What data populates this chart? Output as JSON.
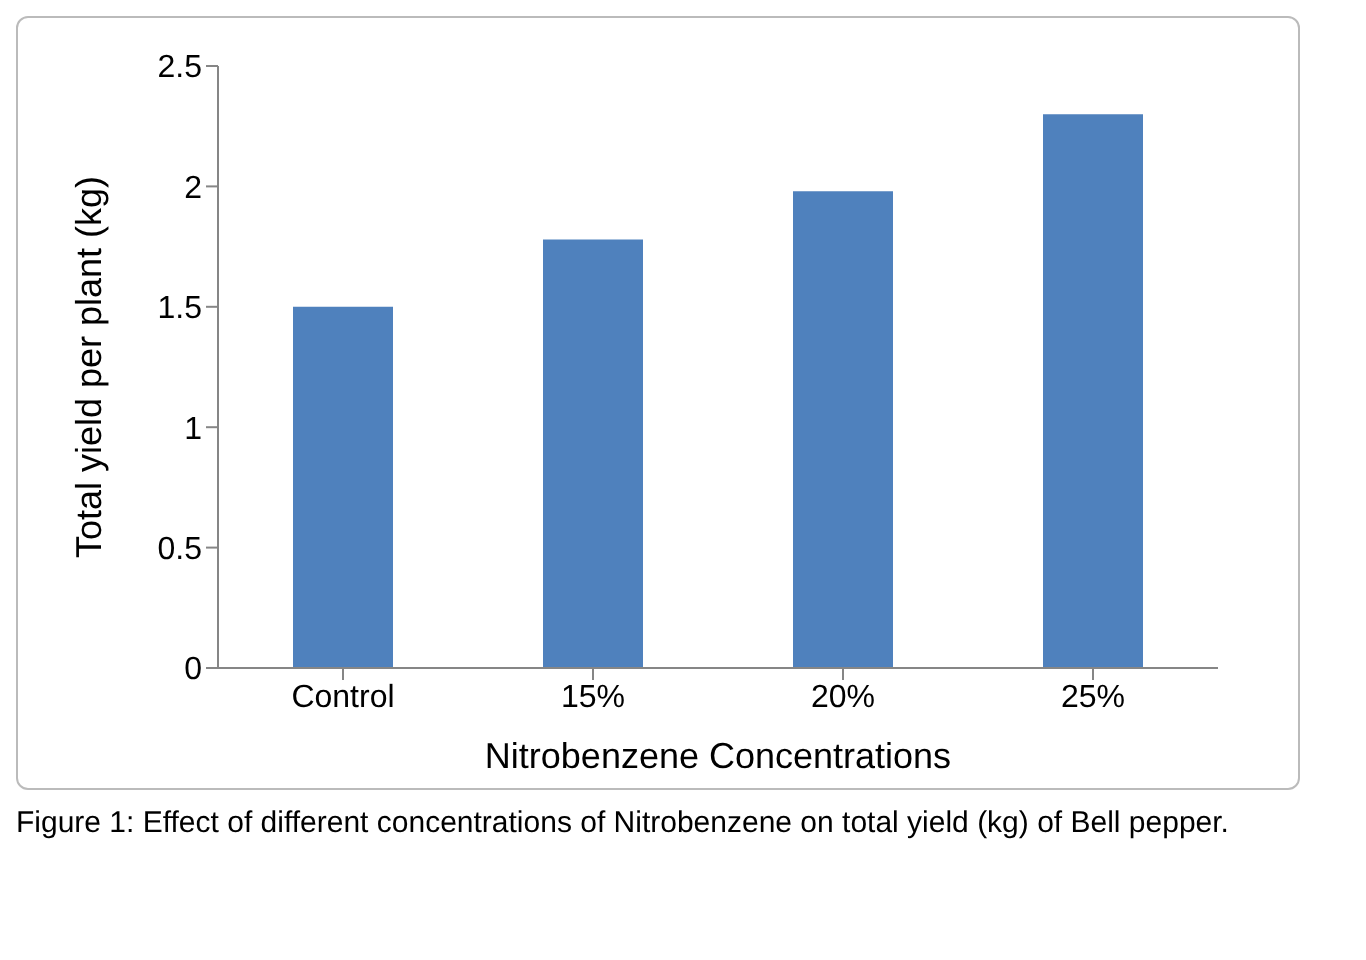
{
  "chart_data": {
    "type": "bar",
    "xlabel": "Nitrobenzene Concentrations",
    "ylabel": "Total yield per plant (kg)",
    "categories": [
      "Control",
      "15%",
      "20%",
      "25%"
    ],
    "values": [
      1.5,
      1.78,
      1.98,
      2.3
    ],
    "color": "#4f81bd",
    "ylim": [
      0,
      2.5
    ],
    "yticks": [
      0,
      0.5,
      1,
      1.5,
      2,
      2.5
    ],
    "grid": false,
    "legend": false,
    "annotations": [
      "Figure 1: Effect of different concentrations of Nitrobenzene on total yield (kg) of Bell pepper."
    ]
  }
}
